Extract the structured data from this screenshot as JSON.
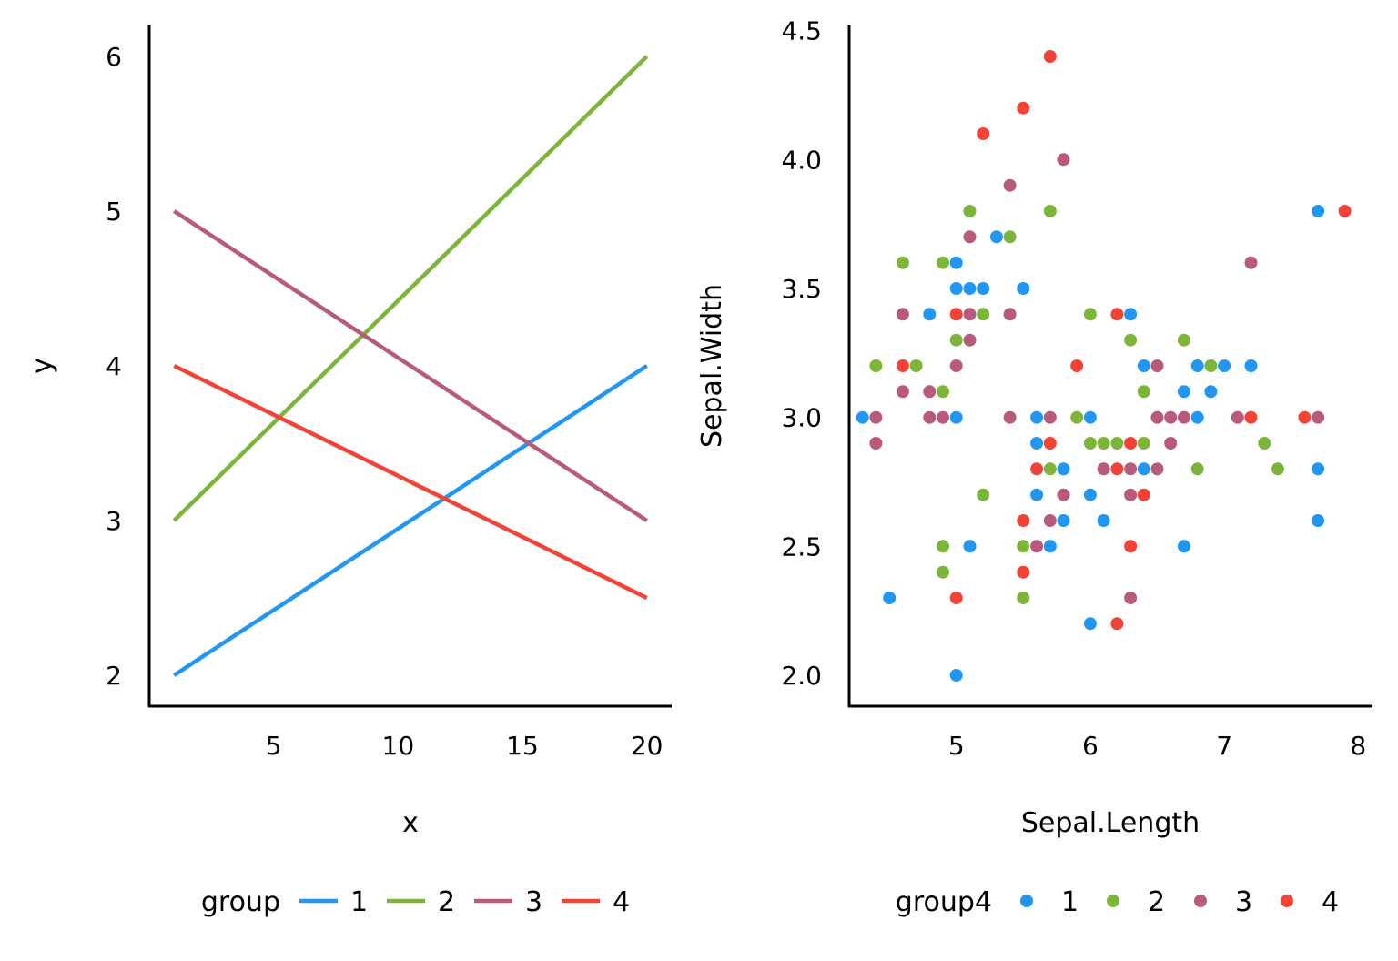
{
  "colors": {
    "1": "#2196F3",
    "2": "#7CB53A",
    "3": "#B85A7E",
    "4": "#F44336"
  },
  "chart_data": [
    {
      "type": "line",
      "xlabel": "x",
      "ylabel": "y",
      "xlim": [
        0,
        21
      ],
      "ylim": [
        1.8,
        6.2
      ],
      "xticks": [
        5,
        10,
        15,
        20
      ],
      "yticks": [
        2,
        3,
        4,
        5,
        6
      ],
      "xtick_labels": [
        "5",
        "10",
        "15",
        "20"
      ],
      "ytick_labels": [
        "2",
        "3",
        "4",
        "5",
        "6"
      ],
      "legend": {
        "title": "group",
        "position": "bottom",
        "labels": [
          "1",
          "2",
          "3",
          "4"
        ]
      },
      "grid": false,
      "series": [
        {
          "name": "1",
          "x": [
            1,
            20
          ],
          "y": [
            2,
            4
          ]
        },
        {
          "name": "2",
          "x": [
            1,
            20
          ],
          "y": [
            3,
            6
          ]
        },
        {
          "name": "3",
          "x": [
            1,
            20
          ],
          "y": [
            5,
            3
          ]
        },
        {
          "name": "4",
          "x": [
            1,
            20
          ],
          "y": [
            4,
            2.5
          ]
        }
      ]
    },
    {
      "type": "scatter",
      "xlabel": "Sepal.Length",
      "ylabel": "Sepal.Width",
      "xlim": [
        4.2,
        8.1
      ],
      "ylim": [
        1.88,
        4.52
      ],
      "xticks": [
        5,
        6,
        7,
        8
      ],
      "yticks": [
        2.0,
        2.5,
        3.0,
        3.5,
        4.0,
        4.5
      ],
      "xtick_labels": [
        "5",
        "6",
        "7",
        "8"
      ],
      "ytick_labels": [
        "2.0",
        "2.5",
        "3.0",
        "3.5",
        "4.0",
        "4.5"
      ],
      "legend": {
        "title": "group4",
        "position": "bottom",
        "labels": [
          "1",
          "2",
          "3",
          "4"
        ]
      },
      "grid": false,
      "series": [
        {
          "name": "1",
          "points": [
            [
              4.3,
              3.0
            ],
            [
              4.5,
              2.3
            ],
            [
              4.8,
              3.4
            ],
            [
              5.0,
              3.6
            ],
            [
              5.0,
              3.5
            ],
            [
              5.0,
              3.0
            ],
            [
              5.0,
              2.0
            ],
            [
              5.1,
              3.5
            ],
            [
              5.1,
              2.5
            ],
            [
              5.2,
              3.5
            ],
            [
              5.3,
              3.7
            ],
            [
              5.5,
              3.5
            ],
            [
              5.6,
              3.0
            ],
            [
              5.6,
              2.9
            ],
            [
              5.6,
              2.7
            ],
            [
              5.7,
              2.5
            ],
            [
              5.8,
              2.8
            ],
            [
              5.8,
              2.6
            ],
            [
              6.0,
              3.0
            ],
            [
              6.0,
              2.7
            ],
            [
              6.0,
              2.2
            ],
            [
              6.1,
              2.6
            ],
            [
              6.3,
              3.4
            ],
            [
              6.4,
              3.2
            ],
            [
              6.4,
              2.8
            ],
            [
              6.7,
              3.1
            ],
            [
              6.7,
              2.5
            ],
            [
              6.8,
              3.2
            ],
            [
              6.8,
              3.0
            ],
            [
              6.9,
              3.1
            ],
            [
              7.0,
              3.2
            ],
            [
              7.2,
              3.2
            ],
            [
              7.7,
              3.8
            ],
            [
              7.7,
              2.8
            ],
            [
              7.7,
              2.6
            ]
          ]
        },
        {
          "name": "2",
          "points": [
            [
              4.4,
              3.2
            ],
            [
              4.6,
              3.6
            ],
            [
              4.7,
              3.2
            ],
            [
              4.9,
              3.6
            ],
            [
              4.9,
              3.1
            ],
            [
              4.9,
              2.5
            ],
            [
              4.9,
              2.4
            ],
            [
              5.0,
              3.3
            ],
            [
              5.1,
              3.8
            ],
            [
              5.2,
              3.4
            ],
            [
              5.2,
              2.7
            ],
            [
              5.4,
              3.7
            ],
            [
              5.5,
              2.5
            ],
            [
              5.5,
              2.3
            ],
            [
              5.7,
              3.8
            ],
            [
              5.7,
              2.8
            ],
            [
              5.9,
              3.0
            ],
            [
              6.0,
              3.4
            ],
            [
              6.0,
              2.9
            ],
            [
              6.1,
              2.9
            ],
            [
              6.2,
              2.9
            ],
            [
              6.3,
              3.3
            ],
            [
              6.4,
              3.1
            ],
            [
              6.4,
              2.9
            ],
            [
              6.7,
              3.3
            ],
            [
              6.8,
              2.8
            ],
            [
              6.9,
              3.2
            ],
            [
              7.3,
              2.9
            ],
            [
              7.4,
              2.8
            ]
          ]
        },
        {
          "name": "3",
          "points": [
            [
              4.4,
              3.0
            ],
            [
              4.4,
              2.9
            ],
            [
              4.6,
              3.4
            ],
            [
              4.6,
              3.1
            ],
            [
              4.8,
              3.1
            ],
            [
              4.8,
              3.0
            ],
            [
              4.9,
              3.0
            ],
            [
              5.0,
              3.2
            ],
            [
              5.1,
              3.7
            ],
            [
              5.1,
              3.4
            ],
            [
              5.1,
              3.3
            ],
            [
              5.4,
              3.9
            ],
            [
              5.4,
              3.4
            ],
            [
              5.4,
              3.0
            ],
            [
              5.6,
              2.5
            ],
            [
              5.7,
              3.0
            ],
            [
              5.7,
              2.6
            ],
            [
              5.8,
              4.0
            ],
            [
              5.8,
              2.7
            ],
            [
              6.1,
              2.8
            ],
            [
              6.3,
              2.8
            ],
            [
              6.3,
              2.7
            ],
            [
              6.3,
              2.3
            ],
            [
              6.5,
              3.2
            ],
            [
              6.5,
              3.0
            ],
            [
              6.5,
              2.8
            ],
            [
              6.6,
              3.0
            ],
            [
              6.6,
              2.9
            ],
            [
              6.7,
              3.0
            ],
            [
              7.1,
              3.0
            ],
            [
              7.2,
              3.6
            ],
            [
              7.7,
              3.0
            ]
          ]
        },
        {
          "name": "4",
          "points": [
            [
              4.6,
              3.2
            ],
            [
              5.0,
              3.4
            ],
            [
              5.0,
              2.3
            ],
            [
              5.2,
              4.1
            ],
            [
              5.5,
              4.2
            ],
            [
              5.5,
              2.6
            ],
            [
              5.5,
              2.4
            ],
            [
              5.6,
              2.8
            ],
            [
              5.7,
              4.4
            ],
            [
              5.7,
              2.9
            ],
            [
              5.9,
              3.2
            ],
            [
              6.2,
              3.4
            ],
            [
              6.2,
              2.8
            ],
            [
              6.2,
              2.2
            ],
            [
              6.3,
              2.9
            ],
            [
              6.3,
              2.5
            ],
            [
              6.4,
              2.7
            ],
            [
              7.2,
              3.0
            ],
            [
              7.6,
              3.0
            ],
            [
              7.9,
              3.8
            ]
          ]
        }
      ]
    }
  ]
}
